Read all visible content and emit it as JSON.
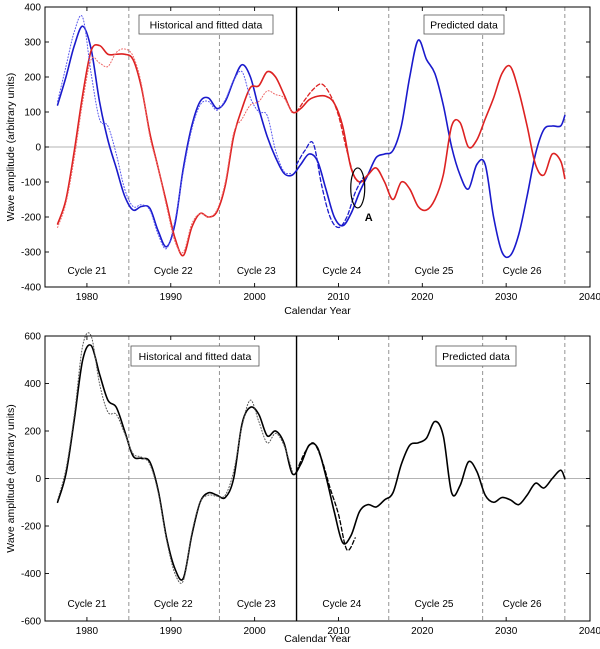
{
  "chart_data": [
    {
      "type": "line",
      "xlabel": "Calendar Year",
      "ylabel": "Wave amplitude (arbitrary units)",
      "xlim": [
        1975,
        2040
      ],
      "ylim": [
        -400,
        400
      ],
      "xticks": [
        1980,
        1990,
        2000,
        2010,
        2020,
        2030,
        2040
      ],
      "yticks": [
        -400,
        -300,
        -200,
        -100,
        0,
        100,
        200,
        300,
        400
      ],
      "colors": {
        "blue": "#1a1acc",
        "red": "#dd2222",
        "dotted_blue": "#5555ee",
        "dotted_red": "#ee6666"
      },
      "boundaries": [
        1985,
        1995.8,
        2016,
        2027.2,
        2037
      ],
      "divider": 2005,
      "boxes": {
        "left": "Historical and fitted data",
        "right": "Predicted data"
      },
      "cycles": [
        {
          "label": "Cycle 21",
          "x": 1980
        },
        {
          "label": "Cycle 22",
          "x": 1990.3
        },
        {
          "label": "Cycle 23",
          "x": 2000.2
        },
        {
          "label": "Cycle 24",
          "x": 2010.4
        },
        {
          "label": "Cycle 25",
          "x": 2021.4
        },
        {
          "label": "Cycle 26",
          "x": 2031.9
        }
      ],
      "annotation": {
        "label": "A",
        "x": 2012.3,
        "y": -117
      },
      "series": [
        {
          "style": "solid",
          "color": "blue",
          "x": [
            1976.5,
            1977.5,
            1978.5,
            1979.5,
            1980.5,
            1981.5,
            1982.5,
            1983.5,
            1984.5,
            1985.5,
            1986.5,
            1987.5,
            1988.5,
            1989.5,
            1990.5,
            1991.5,
            1992.5,
            1993.5,
            1994.5,
            1995.5,
            1996.5,
            1997.5,
            1998.5,
            1999.5,
            2000.5,
            2001.5,
            2002.5,
            2003.5,
            2004.5,
            2005.5,
            2006.5,
            2007.5,
            2008.5,
            2009.5,
            2010.5,
            2011.5,
            2012.5,
            2013.5,
            2014.5,
            2015.5,
            2016.5,
            2017.5,
            2018.5,
            2019.5,
            2020.5,
            2021.5,
            2022.5,
            2023.5,
            2024.5,
            2025.5,
            2026.5,
            2027.5,
            2028.5,
            2029.5,
            2030.5,
            2031.5,
            2032.5,
            2033.5,
            2034.5,
            2035.5,
            2036.5,
            2037.0
          ],
          "y": [
            120,
            200,
            290,
            345,
            280,
            130,
            20,
            -60,
            -140,
            -180,
            -170,
            -175,
            -240,
            -285,
            -220,
            -60,
            60,
            130,
            140,
            110,
            130,
            190,
            235,
            200,
            110,
            30,
            -30,
            -75,
            -80,
            -50,
            -20,
            -40,
            -120,
            -200,
            -225,
            -190,
            -130,
            -80,
            -30,
            -20,
            -10,
            60,
            200,
            305,
            250,
            210,
            120,
            0,
            -80,
            -120,
            -50,
            -50,
            -200,
            -300,
            -310,
            -250,
            -140,
            -20,
            50,
            60,
            60,
            90
          ]
        },
        {
          "style": "solid",
          "color": "red",
          "x": [
            1976.5,
            1977.5,
            1978.5,
            1979.5,
            1980.5,
            1981.5,
            1982.5,
            1983.5,
            1984.5,
            1985.5,
            1986.5,
            1987.5,
            1988.5,
            1989.5,
            1990.5,
            1991.5,
            1992.5,
            1993.5,
            1994.5,
            1995.5,
            1996.5,
            1997.5,
            1998.5,
            1999.5,
            2000.5,
            2001.5,
            2002.5,
            2003.5,
            2004.5,
            2005.5,
            2006.5,
            2007.5,
            2008.5,
            2009.5,
            2010.5,
            2011.5,
            2012.5,
            2013.5,
            2014.5,
            2015.5,
            2016.5,
            2017.5,
            2018.5,
            2019.5,
            2020.5,
            2021.5,
            2022.5,
            2023.5,
            2024.5,
            2025.5,
            2026.5,
            2027.5,
            2028.5,
            2029.5,
            2030.5,
            2031.5,
            2032.5,
            2033.5,
            2034.5,
            2035.5,
            2036.5,
            2037.0
          ],
          "y": [
            -220,
            -150,
            -10,
            150,
            275,
            290,
            265,
            265,
            265,
            250,
            170,
            40,
            -60,
            -160,
            -260,
            -310,
            -230,
            -190,
            -200,
            -185,
            -110,
            30,
            110,
            170,
            175,
            215,
            200,
            150,
            100,
            110,
            135,
            145,
            145,
            125,
            60,
            -60,
            -100,
            -80,
            -60,
            -100,
            -150,
            -100,
            -120,
            -170,
            -180,
            -150,
            -80,
            60,
            70,
            0,
            20,
            80,
            140,
            210,
            230,
            160,
            60,
            -50,
            -80,
            -20,
            -40,
            -90
          ]
        },
        {
          "style": "dotted",
          "color": "dotted_blue",
          "x": [
            1976.5,
            1977.5,
            1978.5,
            1979.5,
            1980.5,
            1981.5,
            1982.5,
            1983.5,
            1984.5,
            1985.5,
            1986.5,
            1987.5,
            1988.5,
            1989.5,
            1990.5,
            1991.5,
            1992.5,
            1993.5,
            1994.5,
            1995.5,
            1996.5,
            1997.5,
            1998.5,
            1999.5,
            2000.5,
            2001.5,
            2002.5,
            2003.5,
            2004.5
          ],
          "y": [
            130,
            230,
            330,
            370,
            210,
            80,
            60,
            -20,
            -120,
            -170,
            -165,
            -180,
            -250,
            -290,
            -210,
            -70,
            50,
            120,
            130,
            105,
            135,
            190,
            215,
            140,
            100,
            90,
            -10,
            -70,
            -75
          ]
        },
        {
          "style": "dotted",
          "color": "dotted_red",
          "x": [
            1976.5,
            1977.5,
            1978.5,
            1979.5,
            1980.5,
            1981.5,
            1982.5,
            1983.5,
            1984.5,
            1985.5,
            1986.5,
            1987.5,
            1988.5,
            1989.5,
            1990.5,
            1991.5,
            1992.5,
            1993.5,
            1994.5,
            1995.5,
            1996.5,
            1997.5,
            1998.5,
            1999.5,
            2000.5,
            2001.5,
            2002.5,
            2003.5,
            2004.5
          ],
          "y": [
            -230,
            -160,
            -30,
            130,
            250,
            240,
            230,
            270,
            280,
            260,
            180,
            30,
            -60,
            -170,
            -270,
            -300,
            -220,
            -190,
            -200,
            -180,
            -100,
            40,
            80,
            120,
            130,
            160,
            150,
            140,
            95
          ]
        },
        {
          "style": "dashed",
          "color": "red",
          "x": [
            2005.0,
            2006.0,
            2007.0,
            2008.0,
            2009.0,
            2010.0,
            2011.0,
            2012.0,
            2013.0
          ],
          "y": [
            100,
            135,
            165,
            180,
            150,
            90,
            -10,
            -90,
            -100
          ]
        },
        {
          "style": "dashed",
          "color": "blue",
          "x": [
            2005.0,
            2006.0,
            2007.0,
            2008.0,
            2009.0,
            2010.0,
            2011.0,
            2012.0,
            2013.0
          ],
          "y": [
            -50,
            -10,
            10,
            -110,
            -200,
            -230,
            -200,
            -130,
            -85
          ]
        }
      ]
    },
    {
      "type": "line",
      "xlabel": "Calendar Year",
      "ylabel": "Wave amplitude (abritrary units)",
      "xlim": [
        1975,
        2040
      ],
      "ylim": [
        -600,
        600
      ],
      "xticks": [
        1980,
        1990,
        2000,
        2010,
        2020,
        2030,
        2040
      ],
      "yticks": [
        -600,
        -400,
        -200,
        0,
        200,
        400,
        600
      ],
      "colors": {
        "line": "#000000",
        "dotted": "#555555"
      },
      "boundaries": [
        1985,
        1995.8,
        2016,
        2027.2,
        2037
      ],
      "divider": 2005,
      "boxes": {
        "left": "Historical and fitted data",
        "right": "Predicted data"
      },
      "cycles": [
        {
          "label": "Cycle 21",
          "x": 1980
        },
        {
          "label": "Cycle 22",
          "x": 1990.3
        },
        {
          "label": "Cycle 23",
          "x": 2000.2
        },
        {
          "label": "Cycle 24",
          "x": 2010.4
        },
        {
          "label": "Cycle 25",
          "x": 2021.4
        },
        {
          "label": "Cycle 26",
          "x": 2031.9
        }
      ],
      "series": [
        {
          "style": "solid",
          "color": "line",
          "x": [
            1976.5,
            1977.5,
            1978.5,
            1979.5,
            1980.5,
            1981.5,
            1982.5,
            1983.5,
            1984.5,
            1985.5,
            1986.5,
            1987.5,
            1988.5,
            1989.5,
            1990.5,
            1991.5,
            1992.5,
            1993.5,
            1994.5,
            1995.5,
            1996.5,
            1997.5,
            1998.5,
            1999.5,
            2000.5,
            2001.5,
            2002.5,
            2003.5,
            2004.5,
            2005.5,
            2006.5,
            2007.5,
            2008.5,
            2009.5,
            2010.5,
            2011.5,
            2012.5,
            2013.5,
            2014.5,
            2015.5,
            2016.5,
            2017.5,
            2018.5,
            2019.5,
            2020.5,
            2021.5,
            2022.5,
            2023.5,
            2024.5,
            2025.5,
            2026.5,
            2027.5,
            2028.5,
            2029.5,
            2030.5,
            2031.5,
            2032.5,
            2033.5,
            2034.5,
            2035.5,
            2036.5,
            2037.0
          ],
          "y": [
            -100,
            20,
            250,
            500,
            560,
            440,
            330,
            300,
            200,
            95,
            85,
            70,
            -50,
            -250,
            -380,
            -420,
            -240,
            -100,
            -60,
            -70,
            -80,
            0,
            230,
            300,
            270,
            180,
            200,
            150,
            20,
            60,
            140,
            130,
            10,
            -140,
            -270,
            -240,
            -140,
            -110,
            -120,
            -90,
            -60,
            60,
            140,
            150,
            170,
            240,
            180,
            -60,
            -30,
            70,
            30,
            -70,
            -100,
            -80,
            -90,
            -110,
            -70,
            -20,
            -40,
            0,
            35,
            0
          ]
        },
        {
          "style": "dotted",
          "color": "dotted",
          "x": [
            1976.5,
            1977.5,
            1978.5,
            1979.5,
            1980.5,
            1981.5,
            1982.5,
            1983.5,
            1984.5,
            1985.5,
            1986.5,
            1987.5,
            1988.5,
            1989.5,
            1990.5,
            1991.5,
            1992.5,
            1993.5,
            1994.5,
            1995.5,
            1996.5,
            1997.5,
            1998.5,
            1999.5,
            2000.5,
            2001.5,
            2002.5,
            2003.5,
            2004.5
          ],
          "y": [
            -90,
            40,
            270,
            560,
            600,
            400,
            280,
            270,
            190,
            105,
            90,
            60,
            -60,
            -260,
            -400,
            -430,
            -230,
            -100,
            -70,
            -75,
            -70,
            30,
            220,
            330,
            240,
            150,
            190,
            140,
            30
          ]
        },
        {
          "style": "dashed",
          "color": "line",
          "x": [
            2005.0,
            2006.0,
            2007.0,
            2008.0,
            2009.0,
            2010.0,
            2011.0,
            2012.0
          ],
          "y": [
            30,
            110,
            150,
            80,
            -40,
            -150,
            -300,
            -250
          ]
        }
      ]
    }
  ]
}
